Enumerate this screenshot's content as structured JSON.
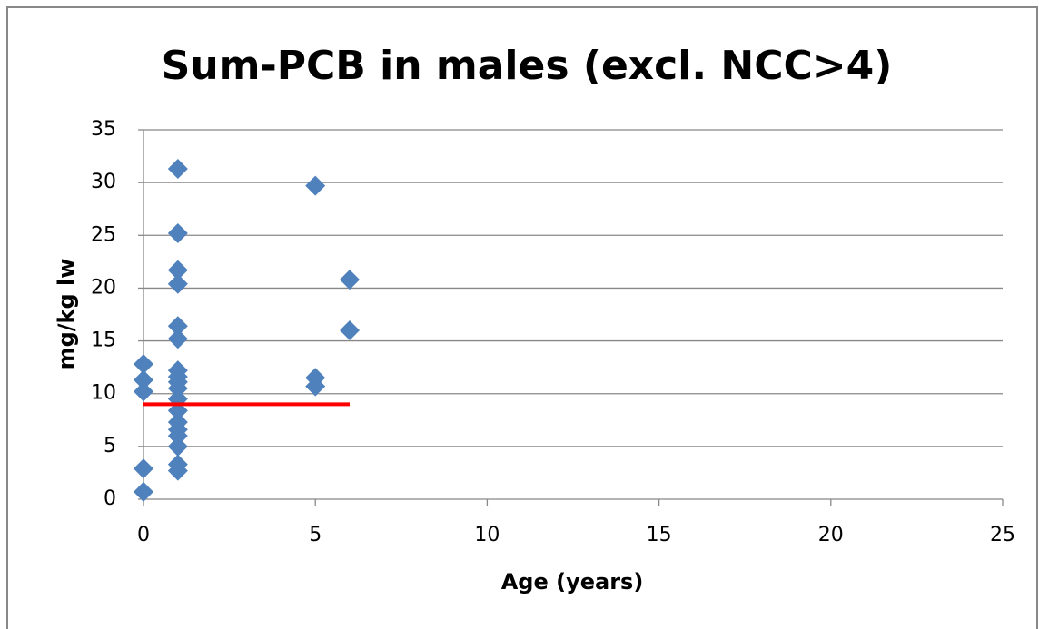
{
  "chart_data": {
    "type": "scatter",
    "title": "Sum-PCB in males (excl. NCC>4)",
    "x_label": "Age (years)",
    "y_label": "mg/kg lw",
    "xlim": [
      0,
      25
    ],
    "xticks": [
      0,
      5,
      10,
      15,
      20,
      25
    ],
    "ylim": [
      0,
      35
    ],
    "yticks": [
      0,
      5,
      10,
      15,
      20,
      25,
      30,
      35
    ],
    "grid": true,
    "series": [
      {
        "color": "#4f81bd",
        "marker": "diamond",
        "x": [
          0,
          0,
          0,
          0,
          0,
          1,
          1,
          1,
          1,
          1,
          1,
          1,
          1,
          1,
          1,
          1,
          1,
          1,
          1,
          1,
          1,
          1,
          1,
          5,
          5,
          5,
          6,
          6
        ],
        "values": [
          12.8,
          11.3,
          10.2,
          2.9,
          0.7,
          31.3,
          25.2,
          21.7,
          20.4,
          16.4,
          15.2,
          12.2,
          11.6,
          11.1,
          10.5,
          9.5,
          8.4,
          7.3,
          6.6,
          6.0,
          5.0,
          3.3,
          2.7,
          29.7,
          11.5,
          10.7,
          20.8,
          16.0
        ]
      },
      {
        "color": "#ff0000",
        "marker": "line",
        "x": [
          0,
          6
        ],
        "values": [
          9.0,
          9.0
        ]
      }
    ]
  }
}
